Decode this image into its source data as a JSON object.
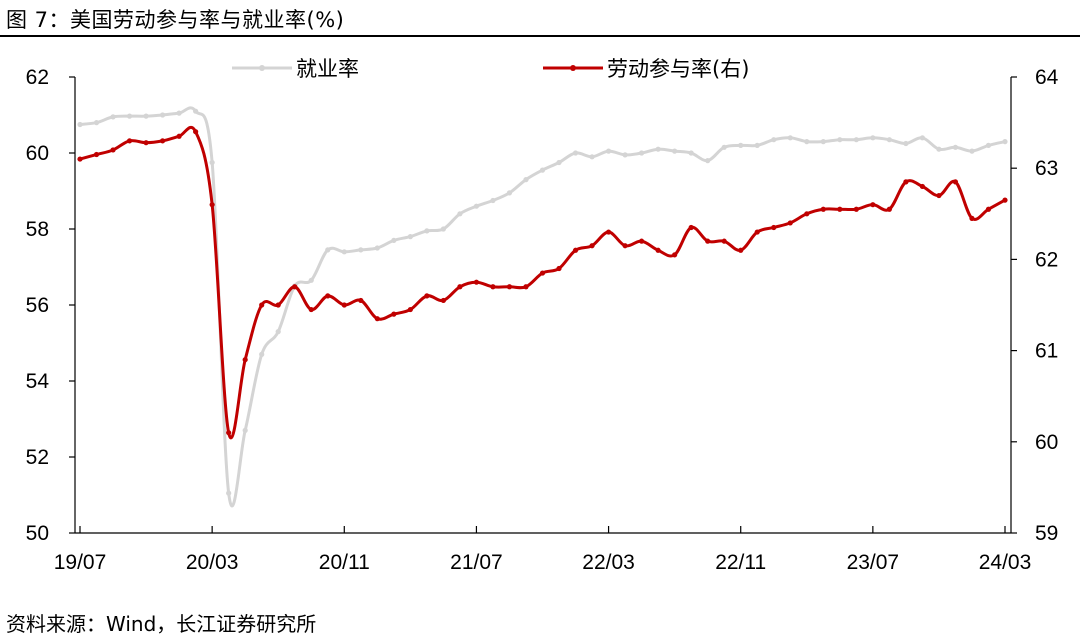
{
  "figure_title": "图 7：美国劳动参与率与就业率(%)",
  "source": "资料来源：Wind，长江证券研究所",
  "colors": {
    "employment": "#d4d4d4",
    "participation": "#c00000",
    "axis": "#000000"
  },
  "chart_data": {
    "type": "line",
    "x_ticks": [
      "19/07",
      "20/03",
      "20/11",
      "21/07",
      "22/03",
      "22/11",
      "23/07",
      "24/03"
    ],
    "x": [
      "19/07",
      "19/08",
      "19/09",
      "19/10",
      "19/11",
      "19/12",
      "20/01",
      "20/02",
      "20/03",
      "20/04",
      "20/05",
      "20/06",
      "20/07",
      "20/08",
      "20/09",
      "20/10",
      "20/11",
      "20/12",
      "21/01",
      "21/02",
      "21/03",
      "21/04",
      "21/05",
      "21/06",
      "21/07",
      "21/08",
      "21/09",
      "21/10",
      "21/11",
      "21/12",
      "22/01",
      "22/02",
      "22/03",
      "22/04",
      "22/05",
      "22/06",
      "22/07",
      "22/08",
      "22/09",
      "22/10",
      "22/11",
      "22/12",
      "23/01",
      "23/02",
      "23/03",
      "23/04",
      "23/05",
      "23/06",
      "23/07",
      "23/08",
      "23/09",
      "23/10",
      "23/11",
      "23/12",
      "24/01",
      "24/02",
      "24/03"
    ],
    "left_axis": {
      "ylim": [
        50,
        62
      ],
      "ticks": [
        50,
        52,
        54,
        56,
        58,
        60,
        62
      ]
    },
    "right_axis": {
      "ylim": [
        59,
        64
      ],
      "ticks": [
        59,
        60,
        61,
        62,
        63,
        64
      ]
    },
    "series": [
      {
        "name": "就业率",
        "axis": "left",
        "values": [
          60.75,
          60.8,
          60.95,
          60.97,
          60.97,
          61.0,
          61.05,
          61.1,
          59.75,
          51.05,
          52.7,
          54.7,
          55.3,
          56.5,
          56.65,
          57.45,
          57.4,
          57.45,
          57.5,
          57.7,
          57.8,
          57.95,
          58.0,
          58.4,
          58.6,
          58.75,
          58.95,
          59.3,
          59.55,
          59.75,
          60.0,
          59.9,
          60.05,
          59.95,
          60.0,
          60.1,
          60.05,
          60.0,
          59.8,
          60.15,
          60.2,
          60.2,
          60.35,
          60.4,
          60.3,
          60.3,
          60.35,
          60.35,
          60.4,
          60.35,
          60.25,
          60.4,
          60.1,
          60.15,
          60.05,
          60.2,
          60.3
        ]
      },
      {
        "name": "劳动参与率(右)",
        "axis": "right",
        "values": [
          63.1,
          63.15,
          63.2,
          63.3,
          63.28,
          63.3,
          63.35,
          63.4,
          62.6,
          60.1,
          60.9,
          61.5,
          61.5,
          61.7,
          61.45,
          61.6,
          61.5,
          61.55,
          61.35,
          61.4,
          61.45,
          61.6,
          61.55,
          61.7,
          61.75,
          61.7,
          61.7,
          61.7,
          61.85,
          61.9,
          62.1,
          62.15,
          62.3,
          62.15,
          62.2,
          62.1,
          62.05,
          62.35,
          62.2,
          62.2,
          62.1,
          62.3,
          62.35,
          62.4,
          62.5,
          62.55,
          62.55,
          62.55,
          62.6,
          62.55,
          62.85,
          62.8,
          62.7,
          62.85,
          62.45,
          62.55,
          62.65
        ]
      }
    ]
  }
}
